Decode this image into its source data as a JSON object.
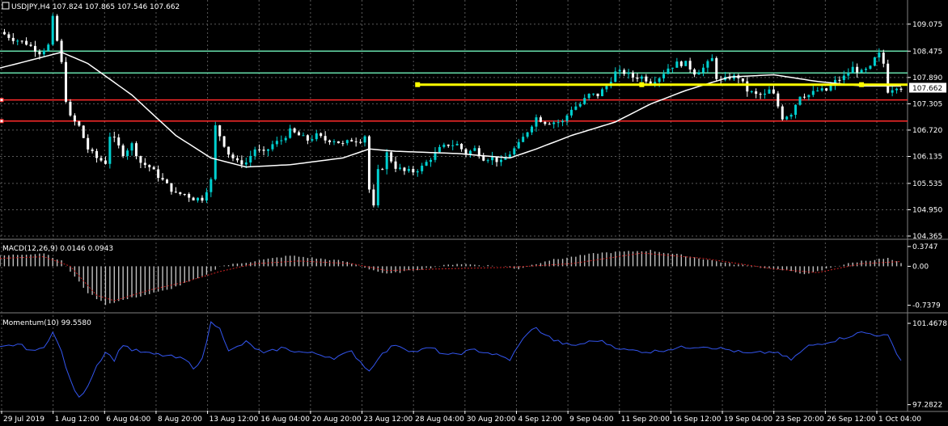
{
  "symbol_info": {
    "header": "USDJPY,H4  107.824 107.865 107.546 107.662",
    "current_price": "107.662"
  },
  "colors": {
    "bg": "#000000",
    "grid": "#5a5a5a",
    "bull": "#00d0d0",
    "bear": "#ffffff",
    "ma": "#ffffff",
    "trend": "#ffff00",
    "support_green": "#66ddaa",
    "support_red": "#ff2a2a",
    "macd_hist": "#c0c0c0",
    "macd_signal": "#cc2222",
    "momentum": "#3355ee",
    "price_box": "#ffffff"
  },
  "chart_data": [
    {
      "type": "line",
      "name": "price",
      "y_ticks": [
        "109.075",
        "108.475",
        "107.890",
        "107.305",
        "106.720",
        "106.135",
        "105.535",
        "104.950",
        "104.365"
      ],
      "ylim": [
        104.365,
        109.36
      ],
      "x_ticks": [
        "29 Jul 2019",
        "1 Aug 12:00",
        "6 Aug 04:00",
        "8 Aug 20:00",
        "13 Aug 12:00",
        "16 Aug 04:00",
        "20 Aug 20:00",
        "23 Aug 12:00",
        "28 Aug 04:00",
        "30 Aug 20:00",
        "4 Sep 12:00",
        "9 Sep 04:00",
        "11 Sep 20:00",
        "16 Sep 12:00",
        "19 Sep 04:00",
        "23 Sep 20:00",
        "26 Sep 12:00",
        "1 Oct 04:00"
      ],
      "close_path": [
        [
          0,
          108.9
        ],
        [
          3,
          108.75
        ],
        [
          6,
          108.65
        ],
        [
          9,
          108.45
        ],
        [
          11,
          108.6
        ],
        [
          12,
          109.2
        ],
        [
          13,
          108.7
        ],
        [
          14,
          108.2
        ],
        [
          15,
          107.4
        ],
        [
          16,
          107.0
        ],
        [
          18,
          106.8
        ],
        [
          20,
          106.3
        ],
        [
          22,
          106.1
        ],
        [
          24,
          106.0
        ],
        [
          25,
          106.6
        ],
        [
          26,
          106.5
        ],
        [
          28,
          106.2
        ],
        [
          30,
          106.4
        ],
        [
          32,
          106.0
        ],
        [
          34,
          105.9
        ],
        [
          36,
          105.7
        ],
        [
          38,
          105.5
        ],
        [
          40,
          105.3
        ],
        [
          42,
          105.3
        ],
        [
          44,
          105.2
        ],
        [
          46,
          105.2
        ],
        [
          48,
          105.6
        ],
        [
          49,
          106.8
        ],
        [
          50,
          106.6
        ],
        [
          52,
          106.2
        ],
        [
          54,
          106.0
        ],
        [
          56,
          106.0
        ],
        [
          58,
          106.3
        ],
        [
          60,
          106.2
        ],
        [
          62,
          106.4
        ],
        [
          64,
          106.5
        ],
        [
          66,
          106.7
        ],
        [
          68,
          106.6
        ],
        [
          70,
          106.5
        ],
        [
          72,
          106.6
        ],
        [
          74,
          106.5
        ],
        [
          76,
          106.5
        ],
        [
          78,
          106.4
        ],
        [
          80,
          106.5
        ],
        [
          82,
          106.5
        ],
        [
          83,
          106.6
        ],
        [
          84,
          105.4
        ],
        [
          85,
          105.0
        ],
        [
          86,
          105.8
        ],
        [
          87,
          105.9
        ],
        [
          88,
          106.2
        ],
        [
          90,
          105.9
        ],
        [
          92,
          105.8
        ],
        [
          94,
          105.8
        ],
        [
          96,
          105.9
        ],
        [
          98,
          106.1
        ],
        [
          100,
          106.3
        ],
        [
          102,
          106.4
        ],
        [
          104,
          106.4
        ],
        [
          106,
          106.2
        ],
        [
          108,
          106.3
        ],
        [
          110,
          106.1
        ],
        [
          112,
          106.1
        ],
        [
          114,
          106.0
        ],
        [
          116,
          106.2
        ],
        [
          118,
          106.4
        ],
        [
          120,
          106.7
        ],
        [
          122,
          107.0
        ],
        [
          124,
          106.9
        ],
        [
          126,
          106.9
        ],
        [
          128,
          106.9
        ],
        [
          130,
          107.2
        ],
        [
          132,
          107.3
        ],
        [
          134,
          107.5
        ],
        [
          136,
          107.5
        ],
        [
          138,
          107.7
        ],
        [
          140,
          108.0
        ],
        [
          142,
          108.0
        ],
        [
          144,
          107.9
        ],
        [
          146,
          107.9
        ],
        [
          148,
          107.8
        ],
        [
          150,
          107.9
        ],
        [
          152,
          108.1
        ],
        [
          154,
          108.2
        ],
        [
          156,
          108.2
        ],
        [
          158,
          108.0
        ],
        [
          160,
          108.1
        ],
        [
          162,
          108.3
        ],
        [
          163,
          107.9
        ],
        [
          164,
          107.8
        ],
        [
          166,
          107.9
        ],
        [
          168,
          107.9
        ],
        [
          170,
          107.6
        ],
        [
          172,
          107.5
        ],
        [
          174,
          107.5
        ],
        [
          175,
          107.6
        ],
        [
          176,
          107.5
        ],
        [
          178,
          107.0
        ],
        [
          180,
          107.1
        ],
        [
          182,
          107.5
        ],
        [
          184,
          107.5
        ],
        [
          186,
          107.6
        ],
        [
          188,
          107.6
        ],
        [
          190,
          107.8
        ],
        [
          192,
          107.9
        ],
        [
          194,
          108.1
        ],
        [
          196,
          108.0
        ],
        [
          198,
          108.1
        ],
        [
          199,
          108.3
        ],
        [
          200,
          108.4
        ],
        [
          201,
          108.2
        ],
        [
          202,
          107.6
        ],
        [
          204,
          107.7
        ],
        [
          205,
          107.662
        ]
      ],
      "ma_path": [
        [
          0,
          108.1
        ],
        [
          10,
          108.35
        ],
        [
          14,
          108.45
        ],
        [
          20,
          108.2
        ],
        [
          30,
          107.5
        ],
        [
          40,
          106.6
        ],
        [
          48,
          106.1
        ],
        [
          56,
          105.9
        ],
        [
          66,
          105.95
        ],
        [
          78,
          106.1
        ],
        [
          84,
          106.3
        ],
        [
          90,
          106.25
        ],
        [
          104,
          106.2
        ],
        [
          116,
          106.1
        ],
        [
          122,
          106.3
        ],
        [
          130,
          106.6
        ],
        [
          140,
          106.9
        ],
        [
          148,
          107.3
        ],
        [
          156,
          107.6
        ],
        [
          166,
          107.9
        ],
        [
          176,
          107.95
        ],
        [
          186,
          107.8
        ],
        [
          196,
          107.7
        ],
        [
          205,
          107.7
        ]
      ],
      "green_lines": [
        108.475,
        107.99
      ],
      "red_lines": [
        107.39,
        106.92
      ],
      "trend_line": {
        "x": [
          95,
          205
        ],
        "y": 107.73
      }
    },
    {
      "type": "bar",
      "name": "MACD",
      "label": "MACD(12,26,9) 0.0146 0.0943",
      "y_ticks": [
        "0.3747",
        "0.00",
        "-0.7379"
      ],
      "ylim": [
        -0.82,
        0.45
      ],
      "hist": [
        [
          0,
          0.2
        ],
        [
          10,
          0.25
        ],
        [
          14,
          0.1
        ],
        [
          20,
          -0.5
        ],
        [
          24,
          -0.72
        ],
        [
          30,
          -0.6
        ],
        [
          38,
          -0.45
        ],
        [
          46,
          -0.2
        ],
        [
          50,
          0.0
        ],
        [
          58,
          0.1
        ],
        [
          66,
          0.2
        ],
        [
          78,
          0.1
        ],
        [
          84,
          -0.05
        ],
        [
          88,
          -0.15
        ],
        [
          96,
          -0.05
        ],
        [
          104,
          0.05
        ],
        [
          114,
          0.0
        ],
        [
          118,
          -0.05
        ],
        [
          124,
          0.1
        ],
        [
          136,
          0.25
        ],
        [
          148,
          0.3
        ],
        [
          156,
          0.2
        ],
        [
          166,
          0.05
        ],
        [
          176,
          -0.05
        ],
        [
          184,
          -0.15
        ],
        [
          190,
          0.0
        ],
        [
          196,
          0.1
        ],
        [
          202,
          0.15
        ],
        [
          205,
          0.05
        ]
      ],
      "signal": [
        [
          0,
          0.15
        ],
        [
          10,
          0.18
        ],
        [
          16,
          0.0
        ],
        [
          22,
          -0.55
        ],
        [
          26,
          -0.65
        ],
        [
          34,
          -0.45
        ],
        [
          42,
          -0.3
        ],
        [
          50,
          -0.1
        ],
        [
          58,
          0.05
        ],
        [
          68,
          0.1
        ],
        [
          80,
          0.05
        ],
        [
          88,
          -0.08
        ],
        [
          100,
          -0.05
        ],
        [
          116,
          -0.02
        ],
        [
          130,
          0.05
        ],
        [
          146,
          0.25
        ],
        [
          160,
          0.15
        ],
        [
          176,
          -0.05
        ],
        [
          186,
          -0.12
        ],
        [
          196,
          0.05
        ],
        [
          205,
          0.09
        ]
      ]
    },
    {
      "type": "line",
      "name": "Momentum",
      "label": "Momentum(10) 99.5580",
      "y_ticks": [
        "101.4678",
        "97.2822"
      ],
      "ylim": [
        97.1,
        101.8
      ],
      "values": [
        [
          0,
          100.2
        ],
        [
          4,
          100.4
        ],
        [
          8,
          100.0
        ],
        [
          10,
          100.3
        ],
        [
          12,
          101.0
        ],
        [
          14,
          100.0
        ],
        [
          16,
          98.5
        ],
        [
          18,
          97.6
        ],
        [
          20,
          98.3
        ],
        [
          22,
          99.3
        ],
        [
          24,
          100.0
        ],
        [
          26,
          99.6
        ],
        [
          28,
          100.4
        ],
        [
          30,
          100.1
        ],
        [
          34,
          99.9
        ],
        [
          38,
          99.8
        ],
        [
          42,
          99.6
        ],
        [
          44,
          99.2
        ],
        [
          46,
          99.6
        ],
        [
          48,
          101.5
        ],
        [
          50,
          101.3
        ],
        [
          52,
          100.0
        ],
        [
          56,
          100.5
        ],
        [
          60,
          99.9
        ],
        [
          64,
          100.2
        ],
        [
          68,
          100.0
        ],
        [
          72,
          99.9
        ],
        [
          76,
          99.7
        ],
        [
          80,
          100.0
        ],
        [
          84,
          99.0
        ],
        [
          86,
          99.7
        ],
        [
          90,
          100.4
        ],
        [
          94,
          100.0
        ],
        [
          98,
          100.2
        ],
        [
          102,
          99.8
        ],
        [
          108,
          100.1
        ],
        [
          112,
          99.9
        ],
        [
          116,
          99.6
        ],
        [
          120,
          101.0
        ],
        [
          122,
          101.2
        ],
        [
          126,
          100.6
        ],
        [
          130,
          100.3
        ],
        [
          136,
          100.6
        ],
        [
          142,
          100.1
        ],
        [
          148,
          100.0
        ],
        [
          154,
          100.2
        ],
        [
          160,
          100.3
        ],
        [
          166,
          100.1
        ],
        [
          170,
          99.9
        ],
        [
          176,
          100.0
        ],
        [
          180,
          99.6
        ],
        [
          184,
          100.3
        ],
        [
          190,
          100.6
        ],
        [
          196,
          101.0
        ],
        [
          202,
          100.8
        ],
        [
          205,
          99.558
        ]
      ]
    }
  ]
}
